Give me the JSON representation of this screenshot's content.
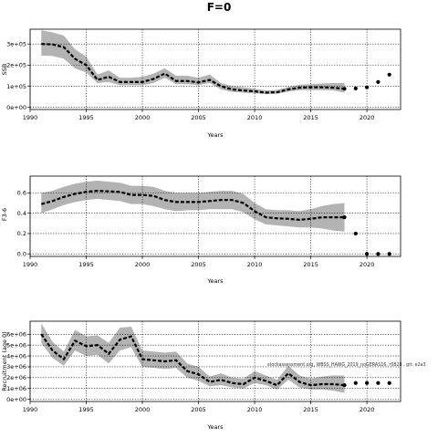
{
  "figure": {
    "title": "F=0"
  },
  "chart_data": [
    {
      "type": "line",
      "name": "ssb",
      "ylabel": "SSB",
      "xlabel": "Years",
      "xlim": [
        1990,
        2023
      ],
      "ylim": [
        -10000,
        370000
      ],
      "xticks": [
        1990,
        1995,
        2000,
        2005,
        2010,
        2015,
        2020
      ],
      "yticks": [
        0,
        100000,
        200000,
        300000
      ],
      "ytick_labels": [
        "0e+00",
        "1e+05",
        "2e+05",
        "3e+05"
      ],
      "grid": true,
      "x": [
        1991,
        1992,
        1993,
        1994,
        1995,
        1996,
        1997,
        1998,
        1999,
        2000,
        2001,
        2002,
        2003,
        2004,
        2005,
        2006,
        2007,
        2008,
        2009,
        2010,
        2011,
        2012,
        2013,
        2014,
        2015,
        2016,
        2017,
        2018
      ],
      "estimate": [
        300000,
        298000,
        285000,
        230000,
        200000,
        130000,
        145000,
        120000,
        120000,
        120000,
        135000,
        160000,
        125000,
        125000,
        118000,
        130000,
        100000,
        85000,
        80000,
        76000,
        70000,
        72000,
        85000,
        93000,
        95000,
        95000,
        93000,
        88000
      ],
      "lower": [
        245000,
        243000,
        230000,
        185000,
        165000,
        115000,
        120000,
        105000,
        105000,
        105000,
        115000,
        140000,
        110000,
        110000,
        105000,
        115000,
        85000,
        73000,
        70000,
        66000,
        63000,
        64000,
        75000,
        82000,
        82000,
        82000,
        80000,
        70000
      ],
      "upper": [
        365000,
        355000,
        340000,
        275000,
        240000,
        155000,
        175000,
        140000,
        140000,
        145000,
        160000,
        185000,
        150000,
        150000,
        140000,
        155000,
        115000,
        100000,
        95000,
        88000,
        80000,
        83000,
        97000,
        107000,
        110000,
        113000,
        115000,
        115000
      ],
      "projection": {
        "x": [
          2018,
          2019,
          2020,
          2021,
          2022
        ],
        "y": [
          88000,
          90000,
          95000,
          120000,
          155000
        ]
      }
    },
    {
      "type": "line",
      "name": "fbar",
      "ylabel": "F3-6",
      "xlabel": "Years",
      "xlim": [
        1990,
        2023
      ],
      "ylim": [
        -0.025,
        0.765
      ],
      "xticks": [
        1990,
        1995,
        2000,
        2005,
        2010,
        2015,
        2020
      ],
      "yticks": [
        0,
        0.2,
        0.4,
        0.6
      ],
      "ytick_labels": [
        "0.0",
        "0.2",
        "0.4",
        "0.6"
      ],
      "grid": true,
      "x": [
        1991,
        1992,
        1993,
        1994,
        1995,
        1996,
        1997,
        1998,
        1999,
        2000,
        2001,
        2002,
        2003,
        2004,
        2005,
        2006,
        2007,
        2008,
        2009,
        2010,
        2011,
        2012,
        2013,
        2014,
        2015,
        2016,
        2017,
        2018
      ],
      "estimate": [
        0.49,
        0.52,
        0.56,
        0.59,
        0.61,
        0.62,
        0.615,
        0.61,
        0.58,
        0.58,
        0.57,
        0.53,
        0.51,
        0.51,
        0.51,
        0.52,
        0.53,
        0.53,
        0.5,
        0.42,
        0.36,
        0.35,
        0.345,
        0.335,
        0.345,
        0.36,
        0.36,
        0.36
      ],
      "lower": [
        0.4,
        0.44,
        0.48,
        0.51,
        0.53,
        0.54,
        0.53,
        0.52,
        0.49,
        0.49,
        0.47,
        0.44,
        0.42,
        0.43,
        0.43,
        0.44,
        0.44,
        0.44,
        0.41,
        0.34,
        0.29,
        0.28,
        0.27,
        0.26,
        0.26,
        0.25,
        0.23,
        0.22
      ],
      "upper": [
        0.6,
        0.62,
        0.66,
        0.69,
        0.71,
        0.72,
        0.71,
        0.7,
        0.67,
        0.67,
        0.66,
        0.62,
        0.6,
        0.6,
        0.6,
        0.61,
        0.62,
        0.62,
        0.59,
        0.5,
        0.44,
        0.43,
        0.43,
        0.42,
        0.44,
        0.47,
        0.49,
        0.5
      ],
      "projection": {
        "x": [
          2018,
          2019,
          2020,
          2021,
          2022
        ],
        "y": [
          0.36,
          0.2,
          0.0,
          0.0,
          0.0
        ]
      }
    },
    {
      "type": "line",
      "name": "recruitment",
      "ylabel": "Recruitment (age 0)",
      "xlabel": "Years",
      "xlim": [
        1990,
        2023
      ],
      "ylim": [
        -200000,
        7200000
      ],
      "xticks": [
        1990,
        1995,
        2000,
        2005,
        2010,
        2015,
        2020
      ],
      "yticks": [
        0,
        1000000,
        2000000,
        3000000,
        4000000,
        5000000,
        6000000
      ],
      "ytick_labels": [
        "0e+00",
        "1e+06",
        "2e+06",
        "3e+06",
        "4e+06",
        "5e+06",
        "6e+06"
      ],
      "grid": true,
      "x": [
        1991,
        1992,
        1993,
        1994,
        1995,
        1996,
        1997,
        1998,
        1999,
        2000,
        2001,
        2002,
        2003,
        2004,
        2005,
        2006,
        2007,
        2008,
        2009,
        2010,
        2011,
        2012,
        2013,
        2014,
        2015,
        2016,
        2017,
        2018
      ],
      "estimate": [
        6000000,
        4500000,
        3700000,
        5400000,
        4900000,
        5000000,
        4200000,
        5500000,
        5800000,
        3700000,
        3600000,
        3500000,
        3600000,
        2600000,
        2300000,
        1600000,
        1800000,
        1500000,
        1400000,
        2000000,
        1700000,
        1300000,
        2400000,
        1600000,
        1300000,
        1400000,
        1400000,
        1300000
      ],
      "lower": [
        5200000,
        3800000,
        3100000,
        4500000,
        4000000,
        4100000,
        3300000,
        4500000,
        4800000,
        3000000,
        2900000,
        2800000,
        2900000,
        2000000,
        1700000,
        1200000,
        1300000,
        1100000,
        1000000,
        1500000,
        1300000,
        900000,
        1800000,
        1100000,
        900000,
        900000,
        800000,
        600000
      ],
      "upper": [
        7000000,
        5300000,
        4400000,
        6400000,
        5800000,
        5900000,
        5200000,
        6600000,
        6700000,
        4500000,
        4400000,
        4300000,
        4400000,
        3300000,
        3000000,
        2100000,
        2400000,
        2000000,
        1900000,
        2600000,
        2200000,
        1800000,
        3100000,
        2200000,
        1900000,
        2100000,
        2200000,
        2200000
      ],
      "projection": {
        "x": [
          2018,
          2019,
          2020,
          2021,
          2022
        ],
        "y": [
          1300000,
          1500000,
          1500000,
          1500000,
          1500000
        ]
      },
      "annotation": "stockassessment.org, WBSS_HAWG_2019_noGERAS16, r0828 , git: e2a3"
    }
  ]
}
